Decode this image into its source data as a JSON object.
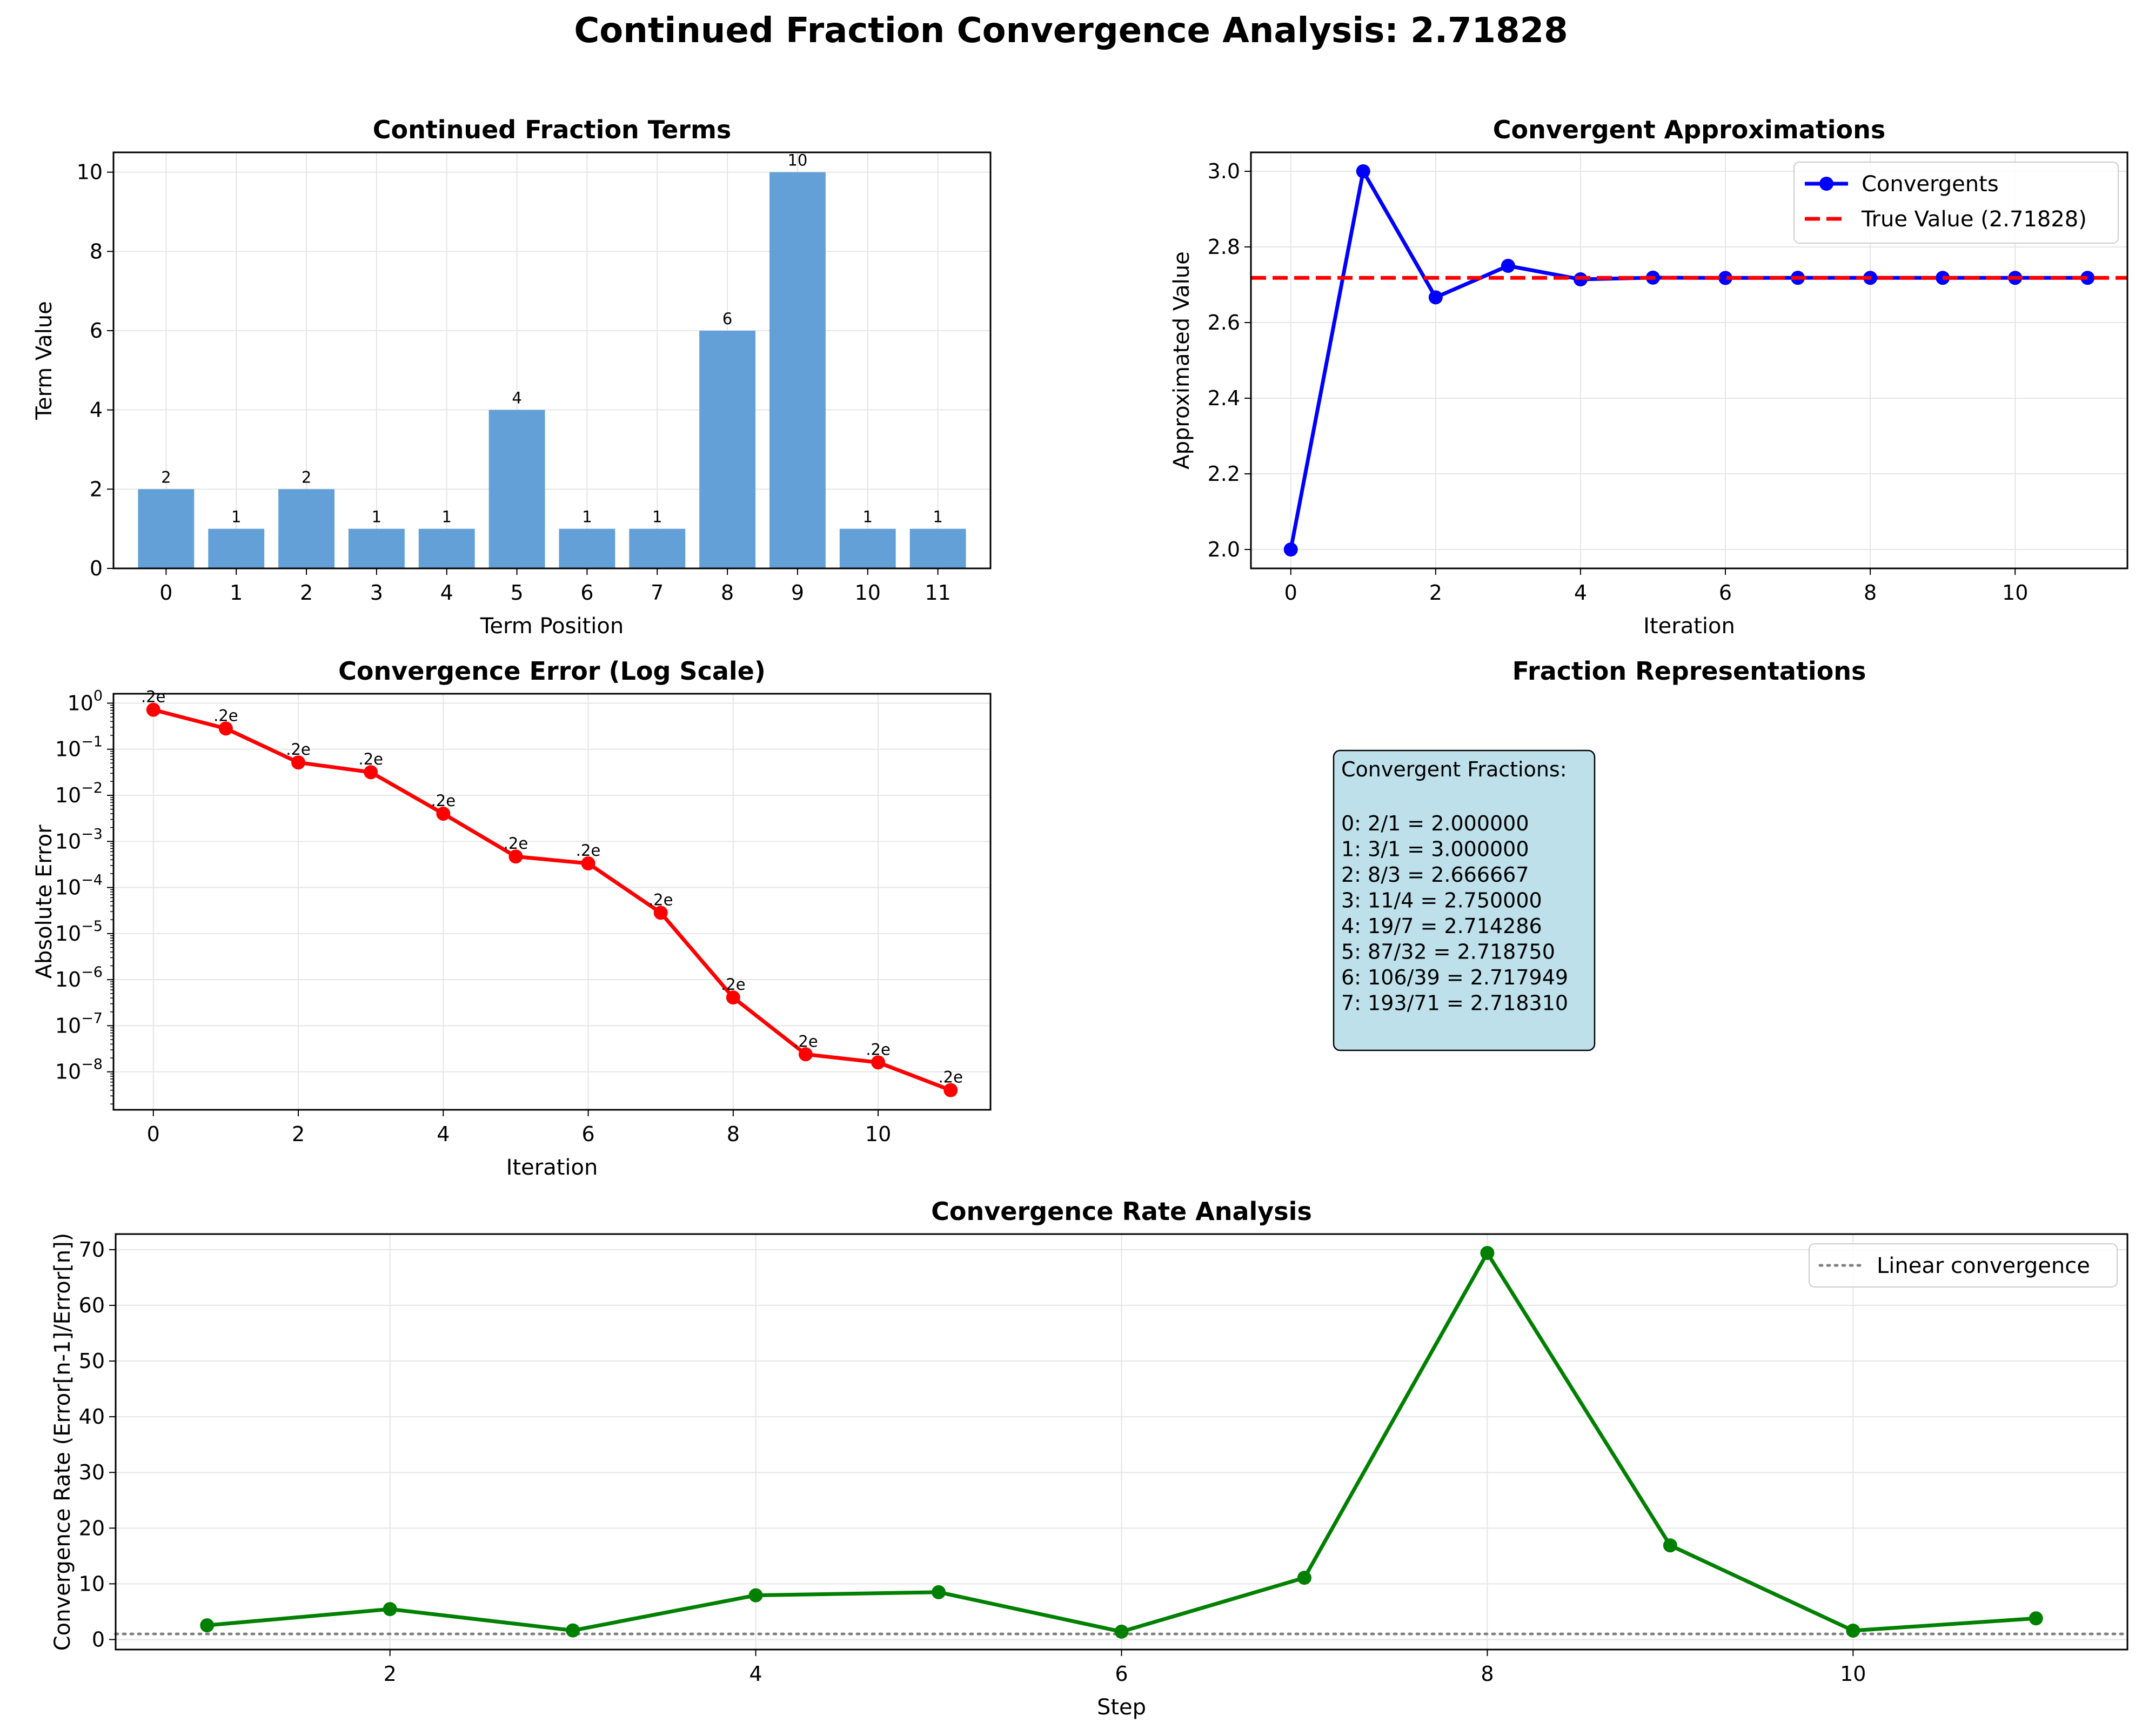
{
  "figure": {
    "title": "Continued Fraction Convergence Analysis: 2.71828"
  },
  "chart_data": [
    {
      "type": "bar",
      "title": "Continued Fraction Terms",
      "xlabel": "Term Position",
      "ylabel": "Term Value",
      "categories": [
        "0",
        "1",
        "2",
        "3",
        "4",
        "5",
        "6",
        "7",
        "8",
        "9",
        "10",
        "11"
      ],
      "values": [
        2,
        1,
        2,
        1,
        1,
        4,
        1,
        1,
        6,
        10,
        1,
        1
      ],
      "data_labels": [
        "2",
        "1",
        "2",
        "1",
        "1",
        "4",
        "1",
        "1",
        "6",
        "10",
        "1",
        "1"
      ],
      "ylim": [
        0,
        10.5
      ],
      "yticks": [
        0,
        2,
        4,
        6,
        8,
        10
      ],
      "color": "#5b9bd5",
      "grid": true
    },
    {
      "type": "line",
      "title": "Convergent Approximations",
      "xlabel": "Iteration",
      "ylabel": "Approximated Value",
      "x": [
        0,
        1,
        2,
        3,
        4,
        5,
        6,
        7,
        8,
        9,
        10,
        11
      ],
      "series": [
        {
          "name": "Convergents",
          "values": [
            2.0,
            3.0,
            2.666667,
            2.75,
            2.714286,
            2.71875,
            2.717949,
            2.71831,
            2.718282,
            2.718282,
            2.718282,
            2.718282
          ],
          "color": "#0000ff"
        }
      ],
      "reference_line": {
        "name": "True Value (2.71828)",
        "value": 2.71828,
        "color": "#ff0000",
        "style": "dashed"
      },
      "xlim": [
        -0.55,
        11.55
      ],
      "ylim": [
        1.95,
        3.05
      ],
      "xticks": [
        0,
        2,
        4,
        6,
        8,
        10
      ],
      "yticks": [
        2.0,
        2.2,
        2.4,
        2.6,
        2.8,
        3.0
      ],
      "legend": "top-right",
      "grid": true
    },
    {
      "type": "line",
      "title": "Convergence Error (Log Scale)",
      "xlabel": "Iteration",
      "ylabel": "Absolute Error",
      "x": [
        0,
        1,
        2,
        3,
        4,
        5,
        6,
        7,
        8,
        9,
        10,
        11
      ],
      "series": [
        {
          "values": [
            0.71828,
            0.28172,
            0.051615,
            0.03172,
            0.003996,
            0.00047,
            0.000333,
            2.83e-05,
            4.1e-07,
            2.4e-08,
            1.6e-08,
            4e-09
          ],
          "color": "#ff0000"
        }
      ],
      "point_labels": [
        ".2e",
        ".2e",
        ".2e",
        ".2e",
        ".2e",
        ".2e",
        ".2e",
        ".2e",
        ".2e",
        ".2e",
        ".2e",
        ".2e"
      ],
      "yscale": "log",
      "xlim": [
        -0.55,
        11.55
      ],
      "ylim": [
        1.5e-09,
        1.6
      ],
      "xticks": [
        0,
        2,
        4,
        6,
        8,
        10
      ],
      "yticks": [
        {
          "base": "10",
          "exp": "0"
        },
        {
          "base": "10",
          "exp": "−1"
        },
        {
          "base": "10",
          "exp": "−2"
        },
        {
          "base": "10",
          "exp": "−3"
        },
        {
          "base": "10",
          "exp": "−4"
        },
        {
          "base": "10",
          "exp": "−5"
        },
        {
          "base": "10",
          "exp": "−6"
        },
        {
          "base": "10",
          "exp": "−7"
        },
        {
          "base": "10",
          "exp": "−8"
        }
      ],
      "grid": true
    },
    {
      "type": "table",
      "title": "Fraction Representations",
      "box_color": "#add8e6",
      "heading": "Convergent Fractions:",
      "lines": [
        "0: 2/1 = 2.000000",
        "1: 3/1 = 3.000000",
        "2: 8/3 = 2.666667",
        "3: 11/4 = 2.750000",
        "4: 19/7 = 2.714286",
        "5: 87/32 = 2.718750",
        "6: 106/39 = 2.717949",
        "7: 193/71 = 2.718310"
      ]
    },
    {
      "type": "line",
      "title": "Convergence Rate Analysis",
      "xlabel": "Step",
      "ylabel": "Convergence Rate (Error[n-1]/Error[n])",
      "x": [
        1,
        2,
        3,
        4,
        5,
        6,
        7,
        8,
        9,
        10,
        11
      ],
      "series": [
        {
          "values": [
            2.55,
            5.46,
            1.63,
            7.94,
            8.5,
            1.41,
            11.09,
            69.4,
            16.9,
            1.6,
            3.8
          ],
          "color": "#008000"
        }
      ],
      "reference_line": {
        "name": "Linear convergence",
        "value": 1,
        "color": "#808080",
        "style": "dotted"
      },
      "xlim": [
        0.5,
        11.5
      ],
      "ylim": [
        -1.8,
        72.8
      ],
      "xticks": [
        2,
        4,
        6,
        8,
        10
      ],
      "yticks": [
        0,
        10,
        20,
        30,
        40,
        50,
        60,
        70
      ],
      "legend": "top-right",
      "grid": true
    }
  ]
}
